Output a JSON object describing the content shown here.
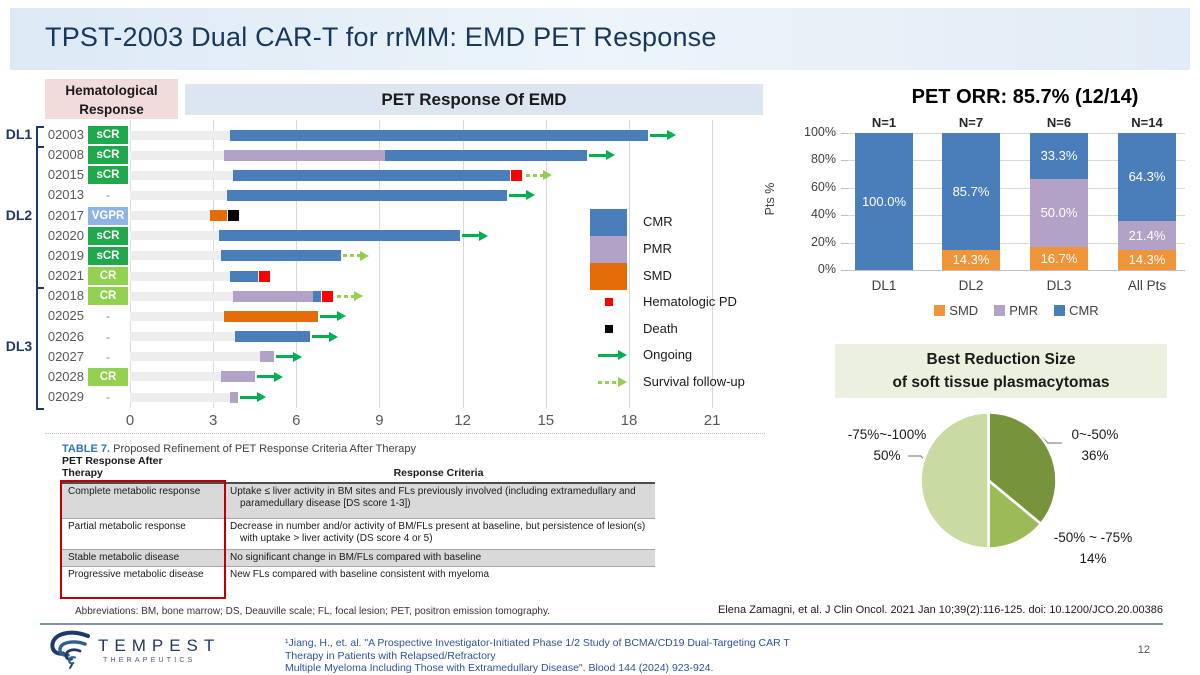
{
  "slide": {
    "title": "TPST-2003 Dual CAR-T for rrMM: EMD PET Response",
    "page_number": "12"
  },
  "headers": {
    "hema_line1": "Hematological",
    "hema_line2": "Response"
  },
  "colors": {
    "accent_navy": "#1f3864",
    "cmr_blue": "#4a7ebb",
    "pmr_purple": "#b3a2c7",
    "smd_dark_orange": "#e36c09",
    "smd_light_orange": "#f0943a",
    "ongoing_green": "#00b050",
    "survival_green": "#92d050",
    "scr_green": "#1fa84c",
    "cr_green": "#92d050",
    "vgpr_blue": "#8db4e2",
    "hem_pd_red": "#fe0000",
    "death_black": "#000000",
    "pie_dark": "#77933c",
    "pie_mid": "#9bbb59",
    "pie_light": "#c9daa3"
  },
  "chart_data": [
    {
      "type": "bar",
      "subtype": "swimmer-plot",
      "title": "PET Response Of EMD",
      "xlim": [
        0,
        21
      ],
      "x_ticks": [
        0,
        3,
        6,
        9,
        12,
        15,
        18,
        21
      ],
      "grid": true,
      "dose_groups": [
        {
          "label": "DL1",
          "start_row": 0,
          "end_row": 0
        },
        {
          "label": "DL2",
          "start_row": 1,
          "end_row": 7
        },
        {
          "label": "DL3",
          "start_row": 8,
          "end_row": 13
        }
      ],
      "rows": [
        {
          "id": "02003",
          "response": "sCR",
          "segments": [
            {
              "type": "CMR",
              "from": 3.6,
              "to": 18.7
            }
          ],
          "end_marker": null,
          "arrow": "ongoing"
        },
        {
          "id": "02008",
          "response": "sCR",
          "segments": [
            {
              "type": "PMR",
              "from": 3.4,
              "to": 9.2
            },
            {
              "type": "CMR",
              "from": 9.2,
              "to": 16.5
            }
          ],
          "end_marker": null,
          "arrow": "ongoing"
        },
        {
          "id": "02015",
          "response": "sCR",
          "segments": [
            {
              "type": "CMR",
              "from": 3.7,
              "to": 13.7
            }
          ],
          "end_marker": "hem_pd",
          "arrow": "survival"
        },
        {
          "id": "02013",
          "response": "-",
          "segments": [
            {
              "type": "CMR",
              "from": 3.5,
              "to": 13.6
            }
          ],
          "end_marker": null,
          "arrow": "ongoing"
        },
        {
          "id": "02017",
          "response": "VGPR",
          "segments": [
            {
              "type": "SMD",
              "from": 2.9,
              "to": 3.5
            }
          ],
          "end_marker": "death",
          "arrow": null
        },
        {
          "id": "02020",
          "response": "sCR",
          "segments": [
            {
              "type": "CMR",
              "from": 3.2,
              "to": 11.9
            }
          ],
          "end_marker": null,
          "arrow": "ongoing"
        },
        {
          "id": "02019",
          "response": "sCR",
          "segments": [
            {
              "type": "CMR",
              "from": 3.3,
              "to": 7.6
            }
          ],
          "end_marker": null,
          "arrow": "survival"
        },
        {
          "id": "02021",
          "response": "CR",
          "segments": [
            {
              "type": "CMR",
              "from": 3.6,
              "to": 4.6
            }
          ],
          "end_marker": "hem_pd",
          "arrow": null
        },
        {
          "id": "02018",
          "response": "CR",
          "segments": [
            {
              "type": "PMR",
              "from": 3.7,
              "to": 6.6
            },
            {
              "type": "CMR",
              "from": 6.6,
              "to": 6.9
            }
          ],
          "end_marker": "hem_pd",
          "arrow": "survival"
        },
        {
          "id": "02025",
          "response": "-",
          "segments": [
            {
              "type": "SMD",
              "from": 3.4,
              "to": 6.8
            }
          ],
          "end_marker": null,
          "arrow": "ongoing"
        },
        {
          "id": "02026",
          "response": "-",
          "segments": [
            {
              "type": "CMR",
              "from": 3.8,
              "to": 6.5
            }
          ],
          "end_marker": null,
          "arrow": "ongoing"
        },
        {
          "id": "02027",
          "response": "-",
          "segments": [
            {
              "type": "PMR",
              "from": 4.7,
              "to": 5.2
            }
          ],
          "end_marker": null,
          "arrow": "ongoing"
        },
        {
          "id": "02028",
          "response": "CR",
          "segments": [
            {
              "type": "PMR",
              "from": 3.3,
              "to": 4.5
            }
          ],
          "end_marker": null,
          "arrow": "ongoing"
        },
        {
          "id": "02029",
          "response": "-",
          "segments": [
            {
              "type": "PMR",
              "from": 3.6,
              "to": 3.9
            }
          ],
          "end_marker": null,
          "arrow": "ongoing"
        }
      ],
      "legend": [
        {
          "type": "box",
          "label": "CMR",
          "color": "#4a7ebb"
        },
        {
          "type": "box",
          "label": "PMR",
          "color": "#b3a2c7"
        },
        {
          "type": "box",
          "label": "SMD",
          "color": "#e36c09"
        },
        {
          "type": "square",
          "label": "Hematologic PD",
          "color": "#fe0000"
        },
        {
          "type": "square",
          "label": "Death",
          "color": "#000000"
        },
        {
          "type": "arrow",
          "label": "Ongoing",
          "color": "#00b050"
        },
        {
          "type": "dashed-arrow",
          "label": "Survival follow-up",
          "color": "#92d050"
        }
      ]
    },
    {
      "type": "bar",
      "subtype": "stacked-percent",
      "title": "PET ORR: 85.7% (12/14)",
      "ylabel": "Pts %",
      "ylim": [
        0,
        100
      ],
      "grid": true,
      "legend_position": "bottom",
      "categories": [
        "DL1",
        "DL2",
        "DL3",
        "All Pts"
      ],
      "n_labels": [
        "N=1",
        "N=7",
        "N=6",
        "N=14"
      ],
      "y_ticks": [
        "0%",
        "20%",
        "40%",
        "60%",
        "80%",
        "100%"
      ],
      "series": [
        {
          "name": "SMD",
          "color": "#f0943a",
          "values": [
            0,
            14.3,
            16.7,
            14.3
          ]
        },
        {
          "name": "PMR",
          "color": "#b3a2c7",
          "values": [
            0,
            0,
            50.0,
            21.4
          ]
        },
        {
          "name": "CMR",
          "color": "#4a7ebb",
          "values": [
            100.0,
            85.7,
            33.3,
            64.3
          ]
        }
      ]
    },
    {
      "type": "pie",
      "title": "Best Reduction Size of soft tissue plasmacytomas",
      "title_lines": [
        "Best Reduction Size",
        "of soft tissue plasmacytomas"
      ],
      "start_angle_deg_from_top": 0,
      "direction": "clockwise",
      "slices": [
        {
          "label": "0~-50%",
          "pct_label": "36%",
          "value": 36,
          "color": "#77933c"
        },
        {
          "label": "-50% ~ -75%",
          "pct_label": "14%",
          "value": 14,
          "color": "#9bbb59"
        },
        {
          "label": "-75%~-100%",
          "pct_label": "50%",
          "value": 50,
          "color": "#c9daa3"
        }
      ]
    }
  ],
  "criteria_table": {
    "caption_label": "TABLE 7.",
    "caption_text": "Proposed Refinement of PET Response Criteria After Therapy",
    "col1_header": "PET Response After Therapy",
    "col2_header": "Response Criteria",
    "rows": [
      {
        "name": "Complete metabolic response",
        "criteria": "Uptake ≤ liver activity in BM sites and FLs previously involved (including extramedullary and paramedullary disease [DS score 1-3])",
        "shaded": true
      },
      {
        "name": "Partial metabolic response",
        "criteria": "Decrease in number and/or activity of BM/FLs present at baseline, but persistence of lesion(s) with uptake > liver activity (DS score 4 or 5)",
        "shaded": false
      },
      {
        "name": "Stable metabolic disease",
        "criteria": "No significant change in BM/FLs compared with baseline",
        "shaded": true
      },
      {
        "name": "Progressive metabolic disease",
        "criteria": "New FLs compared with baseline consistent with myeloma",
        "shaded": false
      }
    ],
    "abbreviations": "Abbreviations: BM, bone marrow; DS, Deauville scale; FL, focal lesion; PET, positron emission tomography."
  },
  "citations": {
    "zamagni": "Elena Zamagni, et al. J Clin Oncol. 2021 Jan 10;39(2):116-125. doi: 10.1200/JCO.20.00386",
    "jiang_line1": "¹Jiang, H., et. al. \"A Prospective Investigator-Initiated Phase 1/2 Study of BCMA/CD19 Dual-Targeting CAR T Therapy in Patients with Relapsed/Refractory",
    "jiang_line2": "Multiple Myeloma Including Those with Extramedullary Disease\". Blood 144 (2024) 923-924."
  },
  "footer": {
    "brand": "TEMPEST",
    "brand_sub": "THERAPEUTICS"
  }
}
